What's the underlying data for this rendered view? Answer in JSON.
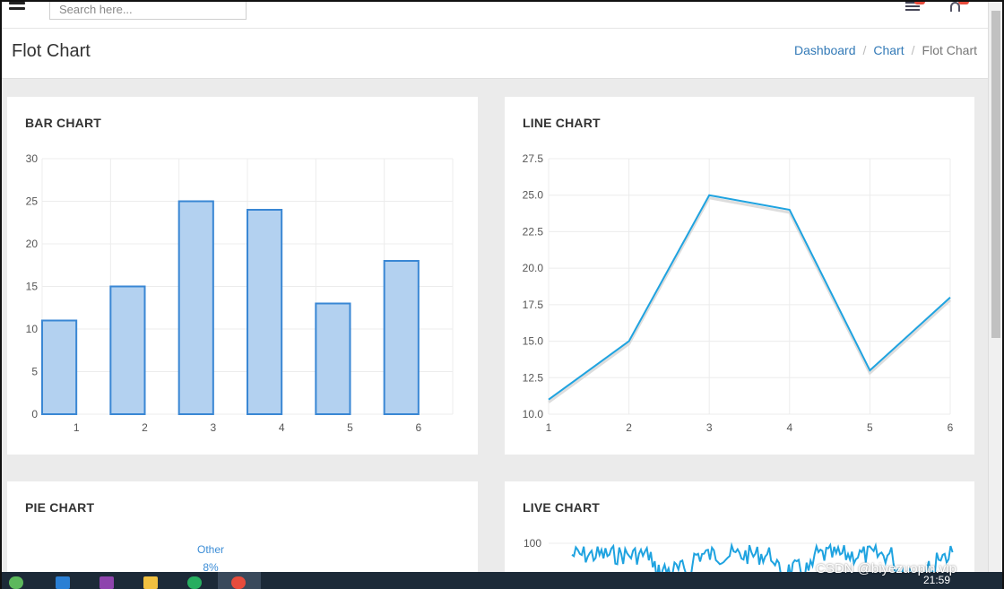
{
  "header": {
    "search_placeholder": "Search here...",
    "icons": [
      "menu-icon",
      "flag-icon",
      "bell-icon"
    ]
  },
  "page": {
    "title": "Flot Chart",
    "breadcrumb": [
      "Dashboard",
      "Chart",
      "Flot Chart"
    ]
  },
  "colors": {
    "bar_fill": "#b3d1f0",
    "bar_stroke": "#3a87d4",
    "line": "#1fa3e0",
    "link": "#337ab7"
  },
  "chart_data": [
    {
      "type": "bar",
      "title": "BAR CHART",
      "categories": [
        "1",
        "2",
        "3",
        "4",
        "5",
        "6"
      ],
      "values": [
        11,
        15,
        25,
        24,
        13,
        18
      ],
      "yticks": [
        "0",
        "5",
        "10",
        "15",
        "20",
        "25",
        "30"
      ],
      "ylim": [
        0,
        30
      ],
      "grid": true
    },
    {
      "type": "line",
      "title": "LINE CHART",
      "x": [
        "1",
        "2",
        "3",
        "4",
        "5",
        "6"
      ],
      "values": [
        11,
        15,
        25,
        24,
        13,
        18
      ],
      "yticks": [
        "10.0",
        "12.5",
        "15.0",
        "17.5",
        "20.0",
        "22.5",
        "25.0",
        "27.5"
      ],
      "ylim": [
        10,
        27.5
      ],
      "grid": true
    },
    {
      "type": "pie",
      "title": "PIE CHART",
      "slices": [
        {
          "name": "Other",
          "value": "8%"
        }
      ]
    },
    {
      "type": "line",
      "title": "LIVE CHART",
      "yticks": [
        "100"
      ],
      "ylim": [
        0,
        100
      ],
      "grid": true
    }
  ],
  "taskbar": {
    "clock": "21:59"
  },
  "watermark": "CSDN @biyezuopin.vip"
}
